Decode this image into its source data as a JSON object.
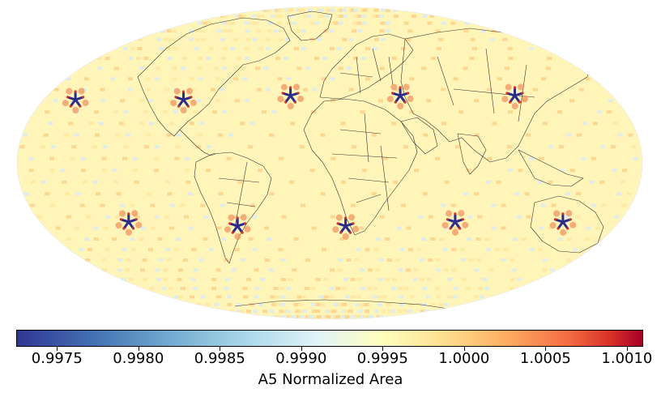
{
  "map": {
    "projection": "mollweide",
    "background_color": "#fff5b8",
    "pattern_colors": [
      "#fff7bc",
      "#fee8a0",
      "#fdd08a",
      "#fbb276",
      "#f08e5a",
      "#dcecf0"
    ],
    "hotspot_marker_colors": [
      "#2c2d8a",
      "#d73027"
    ],
    "land_outline_color": "#333333",
    "hotspots": [
      {
        "region": "north-pacific",
        "lon": -160,
        "lat": 30
      },
      {
        "region": "gulf-of-mexico",
        "lon": -92,
        "lat": 30
      },
      {
        "region": "north-atlantic",
        "lon": -25,
        "lat": 32
      },
      {
        "region": "arabia",
        "lon": 45,
        "lat": 32
      },
      {
        "region": "east-china",
        "lon": 118,
        "lat": 32
      },
      {
        "region": "south-pacific",
        "lon": -125,
        "lat": -28
      },
      {
        "region": "south-america",
        "lon": -58,
        "lat": -30
      },
      {
        "region": "south-africa",
        "lon": 10,
        "lat": -30
      },
      {
        "region": "indian-ocean",
        "lon": 78,
        "lat": -28
      },
      {
        "region": "australia",
        "lon": 145,
        "lat": -28
      }
    ]
  },
  "colorbar": {
    "label": "A5 Normalized Area",
    "cmap": "RdYlBu_r",
    "vmin": 0.99725,
    "vmax": 1.0011,
    "ticks": [
      {
        "value": 0.9975,
        "label": "0.9975"
      },
      {
        "value": 0.998,
        "label": "0.9980"
      },
      {
        "value": 0.9985,
        "label": "0.9985"
      },
      {
        "value": 0.999,
        "label": "0.9990"
      },
      {
        "value": 0.9995,
        "label": "0.9995"
      },
      {
        "value": 1.0,
        "label": "1.0000"
      },
      {
        "value": 1.0005,
        "label": "1.0005"
      },
      {
        "value": 1.001,
        "label": "1.0010"
      }
    ]
  }
}
